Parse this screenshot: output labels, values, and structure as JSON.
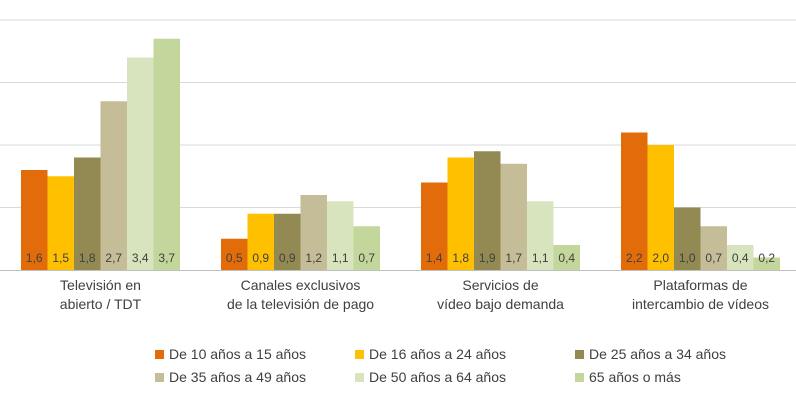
{
  "chart_data": {
    "type": "bar",
    "title": "",
    "xlabel": "",
    "ylabel": "",
    "ylim": [
      0,
      4
    ],
    "grid": true,
    "legend_position": "bottom",
    "categories": [
      [
        "Televisión en",
        "abierto / TDT"
      ],
      [
        "Canales exclusivos",
        "de la televisión de pago"
      ],
      [
        "Servicios de",
        "vídeo bajo demanda"
      ],
      [
        "Plataformas de",
        "intercambio de vídeos"
      ]
    ],
    "series": [
      {
        "name": "De 10 años a 15 años",
        "color": "#E36C0A",
        "values": [
          1.6,
          0.5,
          1.4,
          2.2
        ],
        "labels": [
          "1,6",
          "0,5",
          "1,4",
          "2,2"
        ]
      },
      {
        "name": "De 16 años a 24 años",
        "color": "#FFC000",
        "values": [
          1.5,
          0.9,
          1.8,
          2.0
        ],
        "labels": [
          "1,5",
          "0,9",
          "1,8",
          "2,0"
        ]
      },
      {
        "name": "De 25 años a 34 años",
        "color": "#938953",
        "values": [
          1.8,
          0.9,
          1.9,
          1.0
        ],
        "labels": [
          "1,8",
          "0,9",
          "1,9",
          "1,0"
        ]
      },
      {
        "name": "De 35 años a 49 años",
        "color": "#C4BD97",
        "values": [
          2.7,
          1.2,
          1.7,
          0.7
        ],
        "labels": [
          "2,7",
          "1,2",
          "1,7",
          "0,7"
        ]
      },
      {
        "name": "De 50 años a 64 años",
        "color": "#D7E4BD",
        "values": [
          3.4,
          1.1,
          1.1,
          0.4
        ],
        "labels": [
          "3,4",
          "1,1",
          "1,1",
          "0,4"
        ]
      },
      {
        "name": "65 años o más",
        "color": "#C3D69B",
        "values": [
          3.7,
          0.7,
          0.4,
          0.2
        ],
        "labels": [
          "3,7",
          "0,7",
          "0,4",
          "0,2"
        ]
      }
    ]
  }
}
